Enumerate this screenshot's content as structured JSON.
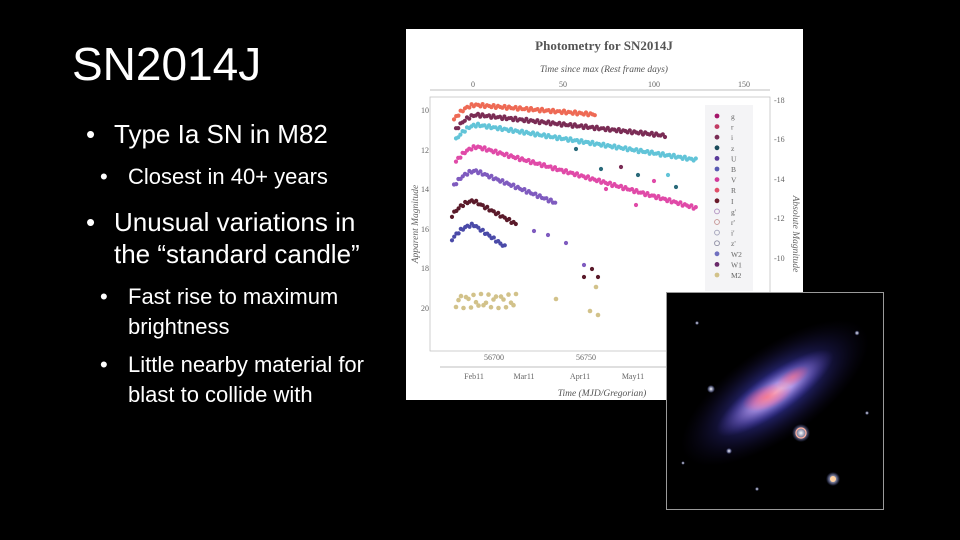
{
  "slide": {
    "title": "SN2014J",
    "bullets": [
      {
        "text": "Type Ia SN in M82",
        "sub": [
          "Closest in 40+ years"
        ]
      },
      {
        "text": "Unusual variations in the “standard candle”",
        "sub": [
          "Fast rise to maximum brightness",
          "Little nearby material for blast to collide with"
        ]
      }
    ]
  },
  "figure": {
    "title": "Photometry for SN2014J",
    "top_axis_label": "Time since max (Rest frame days)",
    "top_ticks": [
      "0",
      "50",
      "100",
      "150"
    ],
    "left_axis_label": "Apparent Magnitude",
    "left_ticks": [
      "10",
      "12",
      "14",
      "16",
      "18",
      "20"
    ],
    "right_axis_label": "Absolute Magnitude",
    "right_ticks": [
      "-18",
      "-16",
      "-14",
      "-12",
      "-10"
    ],
    "bottom_axis_label": "Time (MJD/Gregorian)",
    "mjd_ticks": [
      "56700",
      "56750"
    ],
    "date_ticks": [
      "Feb11",
      "Mar11",
      "Apr11",
      "May11"
    ],
    "legend": [
      {
        "label": "g",
        "color": "#a5156a"
      },
      {
        "label": "r",
        "color": "#c23b63"
      },
      {
        "label": "i",
        "color": "#7a2c55"
      },
      {
        "label": "z",
        "color": "#1a4a5a"
      },
      {
        "label": "U",
        "color": "#5a3a9a"
      },
      {
        "label": "B",
        "color": "#5859b2"
      },
      {
        "label": "V",
        "color": "#d23a9a"
      },
      {
        "label": "R",
        "color": "#e0506a"
      },
      {
        "label": "I",
        "color": "#6a1a2a"
      },
      {
        "label": "g'",
        "color": "#b08fc0"
      },
      {
        "label": "r'",
        "color": "#c49090"
      },
      {
        "label": "i'",
        "color": "#a0a0b8"
      },
      {
        "label": "z'",
        "color": "#8a8aa0"
      },
      {
        "label": "W2",
        "color": "#7070c0"
      },
      {
        "label": "W1",
        "color": "#6a2a6a"
      },
      {
        "label": "M2",
        "color": "#d2c28a"
      }
    ]
  },
  "galaxy_image": {
    "description_icon": "galaxy-photo"
  }
}
